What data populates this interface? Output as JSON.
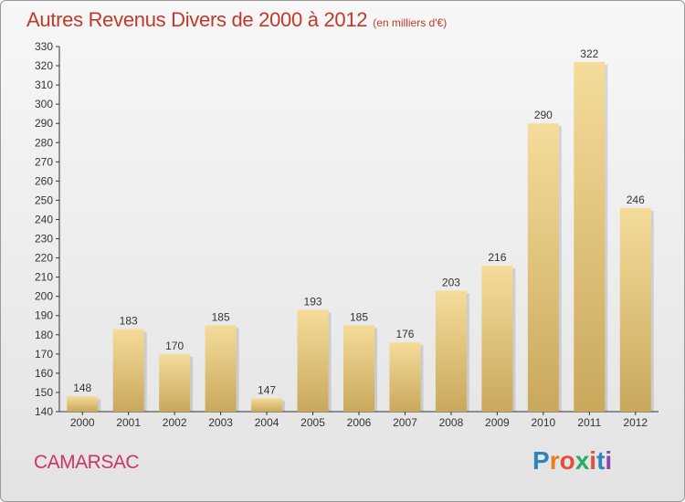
{
  "title": {
    "main": "Autres Revenus Divers de 2000 à 2012",
    "unit": "(en milliers d'€)"
  },
  "commune": "CAMARSAC",
  "logo": {
    "text": "Proxiti",
    "colors": [
      "#2e86c1",
      "#e67e22",
      "#e74c3c",
      "#27ae60",
      "#e74c3c",
      "#2e86c1",
      "#8e44ad"
    ]
  },
  "chart_data": {
    "type": "bar",
    "categories": [
      "2000",
      "2001",
      "2002",
      "2003",
      "2004",
      "2005",
      "2006",
      "2007",
      "2008",
      "2009",
      "2010",
      "2011",
      "2012"
    ],
    "values": [
      148,
      183,
      170,
      185,
      147,
      193,
      185,
      176,
      203,
      216,
      290,
      322,
      246
    ],
    "title": "Autres Revenus Divers de 2000 à 2012",
    "xlabel": "",
    "ylabel": "",
    "ylim": [
      140,
      330
    ],
    "ytick_step": 10,
    "grid": false,
    "data_labels": true,
    "colors": {
      "bar_light": "#f5dc9a",
      "bar_dark": "#c9a85c",
      "axis": "#333333"
    }
  }
}
